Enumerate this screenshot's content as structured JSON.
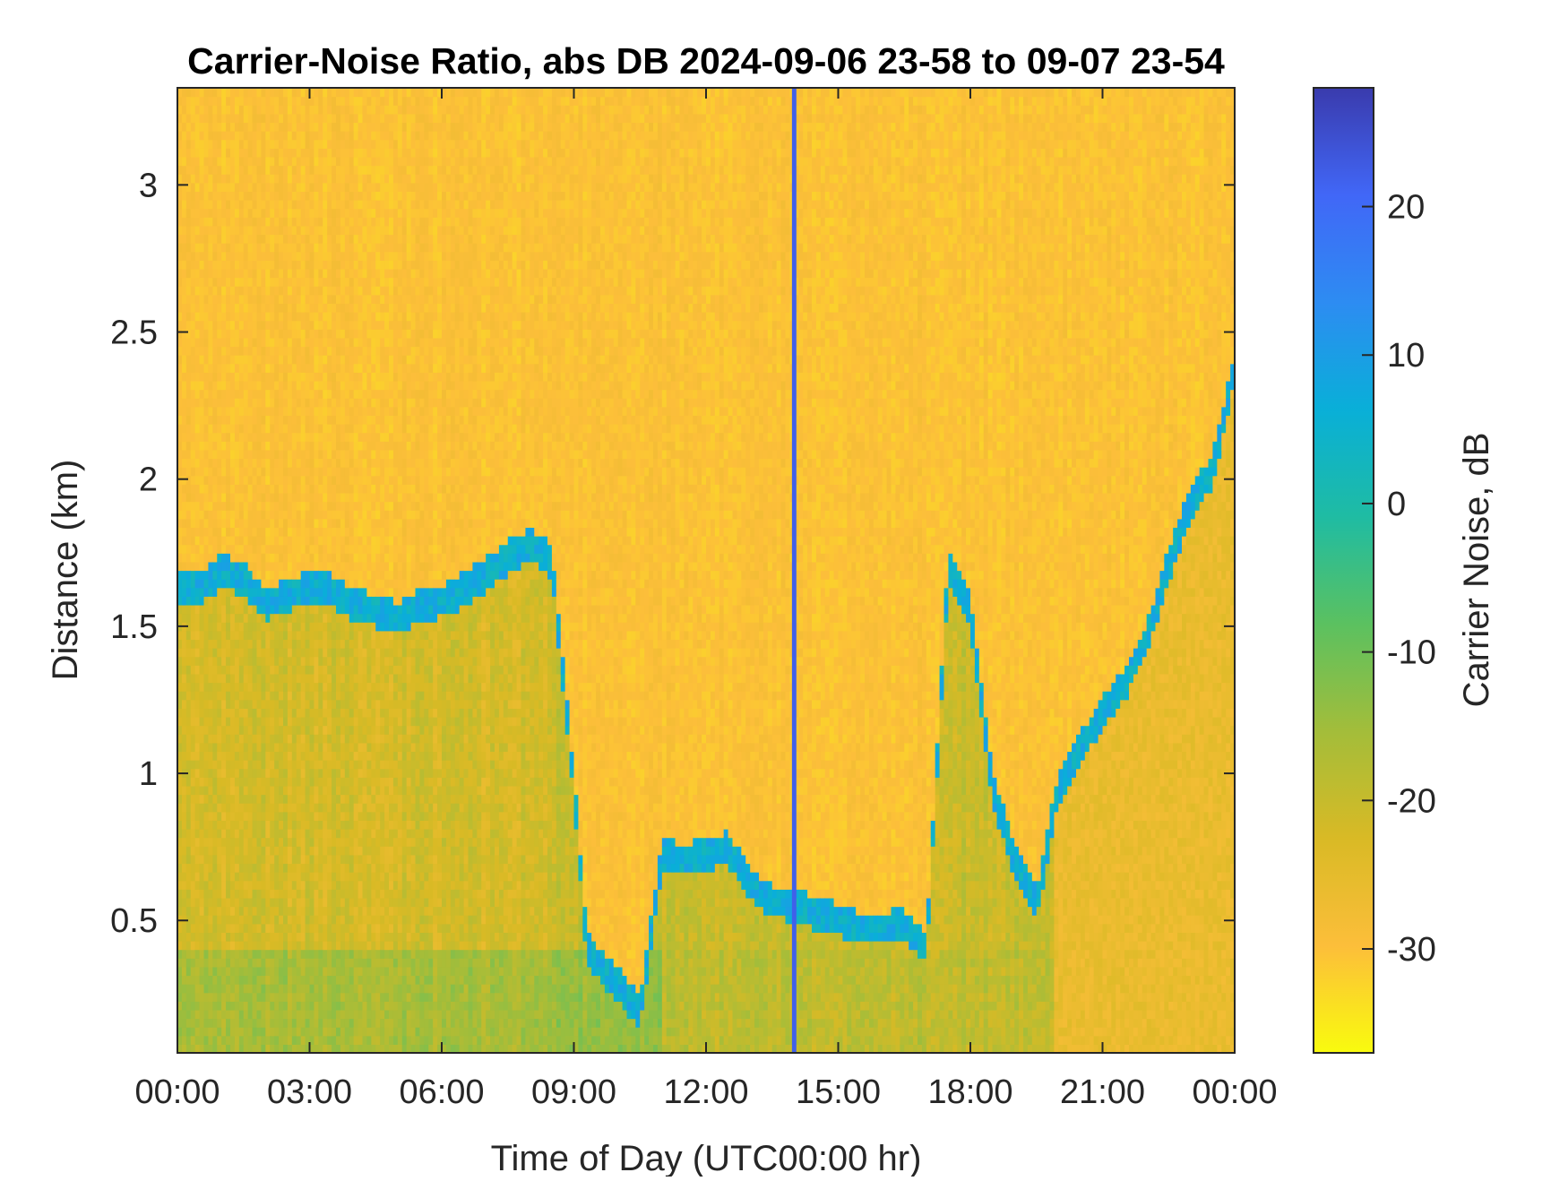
{
  "chart_data": {
    "type": "heatmap",
    "title": "Carrier-Noise Ratio, abs DB 2024-09-06 23-58 to 09-07 23-54",
    "xlabel": "Time of Day (UTC00:00 hr)",
    "ylabel": "Distance (km)",
    "colorbar_label": "Carrier Noise, dB",
    "x_unit": "hours",
    "xlim": [
      0,
      24
    ],
    "ylim": [
      0.05,
      3.33
    ],
    "clim": [
      -37,
      28
    ],
    "xticks": [
      0,
      3,
      6,
      9,
      12,
      15,
      18,
      21,
      24
    ],
    "xtick_labels": [
      "00:00",
      "03:00",
      "06:00",
      "09:00",
      "12:00",
      "15:00",
      "18:00",
      "21:00",
      "00:00"
    ],
    "yticks": [
      0.5,
      1,
      1.5,
      2,
      2.5,
      3
    ],
    "ytick_labels": [
      "0.5",
      "1",
      "1.5",
      "2",
      "2.5",
      "3"
    ],
    "cticks": [
      -30,
      -20,
      -10,
      0,
      10,
      20
    ],
    "ctick_labels": [
      "-30",
      "-20",
      "-10",
      "0",
      "10",
      "20"
    ],
    "colormap": [
      "#f9fb0e",
      "#fcbe3a",
      "#d9ba25",
      "#a3bd3a",
      "#5bc160",
      "#1fbca3",
      "#09afd8",
      "#2d8cf2",
      "#4167f7",
      "#3a3bad"
    ],
    "background_value": -30,
    "boundary_layer_top_km": [
      [
        0.0,
        1.62
      ],
      [
        0.5,
        1.62
      ],
      [
        1.0,
        1.68
      ],
      [
        1.5,
        1.66
      ],
      [
        2.0,
        1.57
      ],
      [
        2.5,
        1.6
      ],
      [
        3.0,
        1.63
      ],
      [
        3.5,
        1.62
      ],
      [
        4.0,
        1.57
      ],
      [
        4.5,
        1.55
      ],
      [
        5.0,
        1.52
      ],
      [
        5.5,
        1.57
      ],
      [
        6.0,
        1.58
      ],
      [
        6.5,
        1.62
      ],
      [
        7.0,
        1.67
      ],
      [
        7.5,
        1.73
      ],
      [
        8.0,
        1.77
      ],
      [
        8.5,
        1.72
      ],
      [
        9.0,
        0.95
      ],
      [
        9.3,
        0.4
      ],
      [
        9.7,
        0.32
      ],
      [
        10.0,
        0.28
      ],
      [
        10.5,
        0.18
      ],
      [
        11.0,
        0.72
      ],
      [
        11.5,
        0.7
      ],
      [
        12.0,
        0.72
      ],
      [
        12.5,
        0.74
      ],
      [
        13.0,
        0.62
      ],
      [
        13.5,
        0.56
      ],
      [
        14.0,
        0.55
      ],
      [
        14.5,
        0.52
      ],
      [
        15.0,
        0.5
      ],
      [
        15.5,
        0.47
      ],
      [
        16.0,
        0.47
      ],
      [
        16.5,
        0.48
      ],
      [
        17.0,
        0.4
      ],
      [
        17.5,
        1.7
      ],
      [
        18.0,
        1.55
      ],
      [
        18.5,
        0.95
      ],
      [
        19.0,
        0.7
      ],
      [
        19.5,
        0.55
      ],
      [
        20.0,
        0.95
      ],
      [
        20.5,
        1.08
      ],
      [
        21.0,
        1.2
      ],
      [
        21.5,
        1.3
      ],
      [
        22.0,
        1.45
      ],
      [
        22.5,
        1.7
      ],
      [
        23.0,
        1.92
      ],
      [
        23.5,
        2.02
      ],
      [
        24.0,
        2.38
      ]
    ],
    "strong_return_column": {
      "x": 14.0,
      "value": 22
    }
  }
}
